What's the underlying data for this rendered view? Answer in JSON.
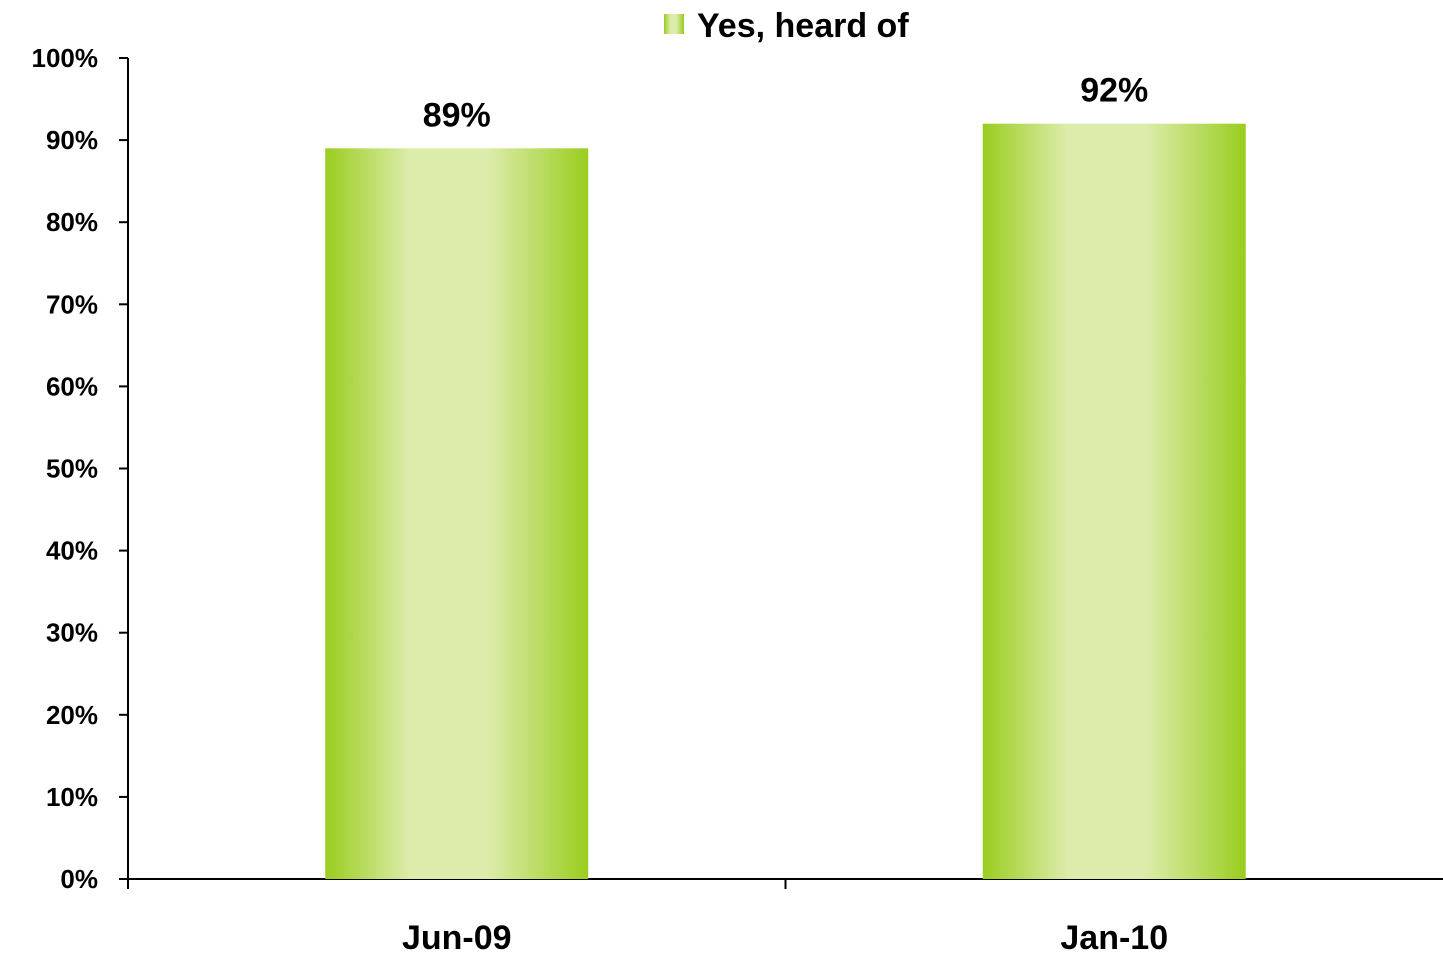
{
  "chart_data": {
    "type": "bar",
    "categories": [
      "Jun-09",
      "Jan-10"
    ],
    "series": [
      {
        "name": "Yes, heard of",
        "values": [
          89,
          92
        ],
        "data_labels": [
          "89%",
          "92%"
        ],
        "color": "#9acd1f",
        "highlight_color": "#dcecaa"
      }
    ],
    "ylim": [
      0,
      100
    ],
    "y_ticks": [
      0,
      10,
      20,
      30,
      40,
      50,
      60,
      70,
      80,
      90,
      100
    ],
    "y_tick_labels": [
      "0%",
      "10%",
      "20%",
      "30%",
      "40%",
      "50%",
      "60%",
      "70%",
      "80%",
      "90%",
      "100%"
    ],
    "legend_position": "top-center",
    "grid": false
  }
}
